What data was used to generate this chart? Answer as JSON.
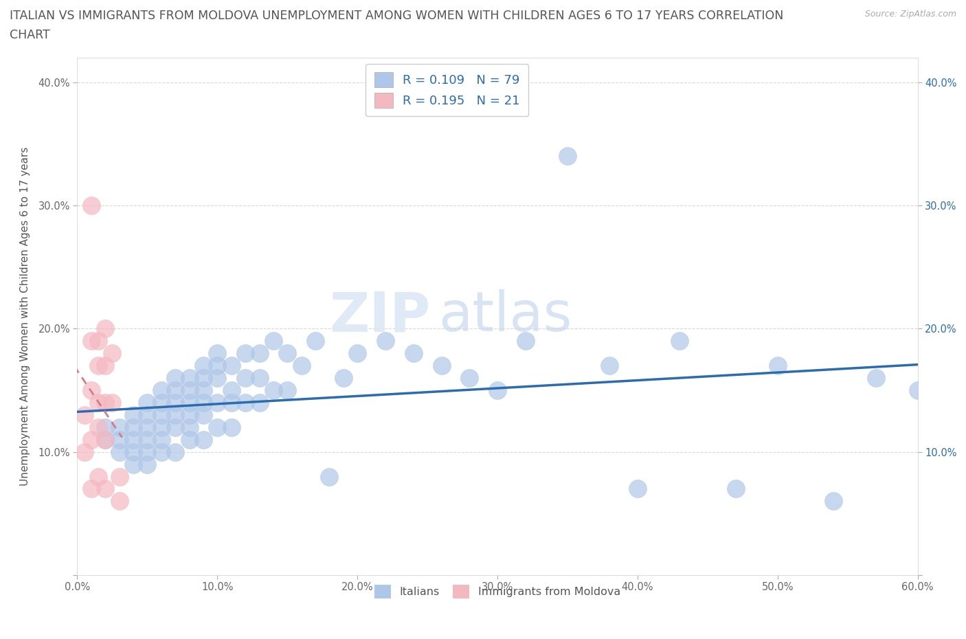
{
  "title_line1": "ITALIAN VS IMMIGRANTS FROM MOLDOVA UNEMPLOYMENT AMONG WOMEN WITH CHILDREN AGES 6 TO 17 YEARS CORRELATION",
  "title_line2": "CHART",
  "source": "Source: ZipAtlas.com",
  "ylabel": "Unemployment Among Women with Children Ages 6 to 17 years",
  "xlim": [
    0,
    0.6
  ],
  "ylim": [
    0,
    0.42
  ],
  "xticks": [
    0.0,
    0.1,
    0.2,
    0.3,
    0.4,
    0.5,
    0.6
  ],
  "yticks": [
    0.0,
    0.1,
    0.2,
    0.3,
    0.4
  ],
  "xticklabels": [
    "0.0%",
    "10.0%",
    "20.0%",
    "30.0%",
    "40.0%",
    "50.0%",
    "60.0%"
  ],
  "yticklabels": [
    "",
    "10.0%",
    "20.0%",
    "30.0%",
    "40.0%"
  ],
  "yticklabels_right": [
    "",
    "10.0%",
    "20.0%",
    "30.0%",
    "40.0%"
  ],
  "italian_color": "#aec6e8",
  "moldova_color": "#f4b8c1",
  "trend_italian_color": "#2b6cb0",
  "trend_moldova_color": "#d47a8a",
  "italian_R": 0.109,
  "italian_N": 79,
  "moldova_R": 0.195,
  "moldova_N": 21,
  "watermark": "ZIPatlas",
  "background_color": "#ffffff",
  "grid_color": "#d8d8d8",
  "italian_x": [
    0.02,
    0.02,
    0.03,
    0.03,
    0.03,
    0.04,
    0.04,
    0.04,
    0.04,
    0.04,
    0.05,
    0.05,
    0.05,
    0.05,
    0.05,
    0.05,
    0.06,
    0.06,
    0.06,
    0.06,
    0.06,
    0.06,
    0.07,
    0.07,
    0.07,
    0.07,
    0.07,
    0.07,
    0.08,
    0.08,
    0.08,
    0.08,
    0.08,
    0.08,
    0.09,
    0.09,
    0.09,
    0.09,
    0.09,
    0.09,
    0.1,
    0.1,
    0.1,
    0.1,
    0.1,
    0.11,
    0.11,
    0.11,
    0.11,
    0.12,
    0.12,
    0.12,
    0.13,
    0.13,
    0.13,
    0.14,
    0.14,
    0.15,
    0.15,
    0.16,
    0.17,
    0.18,
    0.19,
    0.2,
    0.22,
    0.24,
    0.26,
    0.28,
    0.3,
    0.32,
    0.35,
    0.38,
    0.4,
    0.43,
    0.47,
    0.5,
    0.54,
    0.57,
    0.6
  ],
  "italian_y": [
    0.12,
    0.11,
    0.12,
    0.11,
    0.1,
    0.13,
    0.12,
    0.11,
    0.1,
    0.09,
    0.14,
    0.13,
    0.12,
    0.11,
    0.1,
    0.09,
    0.15,
    0.14,
    0.13,
    0.12,
    0.11,
    0.1,
    0.16,
    0.15,
    0.14,
    0.13,
    0.12,
    0.1,
    0.16,
    0.15,
    0.14,
    0.13,
    0.12,
    0.11,
    0.17,
    0.16,
    0.15,
    0.14,
    0.13,
    0.11,
    0.18,
    0.17,
    0.16,
    0.14,
    0.12,
    0.17,
    0.15,
    0.14,
    0.12,
    0.18,
    0.16,
    0.14,
    0.18,
    0.16,
    0.14,
    0.19,
    0.15,
    0.18,
    0.15,
    0.17,
    0.19,
    0.08,
    0.16,
    0.18,
    0.19,
    0.18,
    0.17,
    0.16,
    0.15,
    0.19,
    0.34,
    0.17,
    0.07,
    0.19,
    0.07,
    0.17,
    0.06,
    0.16,
    0.15
  ],
  "moldova_x": [
    0.005,
    0.005,
    0.01,
    0.01,
    0.01,
    0.01,
    0.01,
    0.015,
    0.015,
    0.015,
    0.015,
    0.015,
    0.02,
    0.02,
    0.02,
    0.02,
    0.02,
    0.025,
    0.025,
    0.03,
    0.03
  ],
  "moldova_y": [
    0.13,
    0.1,
    0.3,
    0.19,
    0.15,
    0.11,
    0.07,
    0.19,
    0.17,
    0.14,
    0.12,
    0.08,
    0.2,
    0.17,
    0.14,
    0.11,
    0.07,
    0.18,
    0.14,
    0.08,
    0.06
  ]
}
